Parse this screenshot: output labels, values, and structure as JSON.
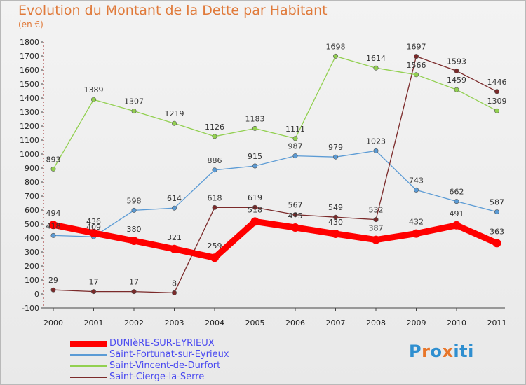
{
  "title": "Evolution du Montant de la Dette par Habitant",
  "subtitle": "(en €)",
  "chart_data": {
    "type": "line",
    "title": "Evolution du Montant de la Dette par Habitant",
    "ylabel": "(en €)",
    "xlabel": "",
    "categories": [
      "2000",
      "2001",
      "2002",
      "2003",
      "2004",
      "2005",
      "2006",
      "2007",
      "2008",
      "2009",
      "2010",
      "2011"
    ],
    "ylim": [
      -100,
      1800
    ],
    "yticks": [
      -100,
      0,
      100,
      200,
      300,
      400,
      500,
      600,
      700,
      800,
      900,
      1000,
      1100,
      1200,
      1300,
      1400,
      1500,
      1600,
      1700,
      1800
    ],
    "grid": false,
    "legend_position": "bottom-left",
    "series": [
      {
        "name": "DUNIèRE-SUR-EYRIEUX",
        "color": "#ff0000",
        "values": [
          494,
          436,
          380,
          321,
          259,
          518,
          475,
          430,
          387,
          432,
          491,
          363
        ]
      },
      {
        "name": "Saint-Fortunat-sur-Eyrieux",
        "color": "#5b9bd5",
        "values": [
          418,
          409,
          598,
          614,
          886,
          915,
          987,
          979,
          1023,
          743,
          662,
          587
        ]
      },
      {
        "name": "Saint-Vincent-de-Durfort",
        "color": "#92d050",
        "values": [
          893,
          1389,
          1307,
          1219,
          1126,
          1183,
          1111,
          1698,
          1614,
          1566,
          1459,
          1309
        ]
      },
      {
        "name": "Saint-Cierge-la-Serre",
        "color": "#7b2a2a",
        "values": [
          29,
          17,
          17,
          8,
          618,
          619,
          567,
          549,
          532,
          1697,
          1593,
          1446
        ]
      }
    ]
  },
  "logo": {
    "letters": [
      "P",
      "r",
      "o",
      "x",
      "i",
      "t",
      "i"
    ],
    "colors": [
      "#2f8fd0",
      "#e8762a",
      "#2f8fd0",
      "#e8762a",
      "#2f8fd0",
      "#2f8fd0",
      "#2f8fd0"
    ]
  }
}
